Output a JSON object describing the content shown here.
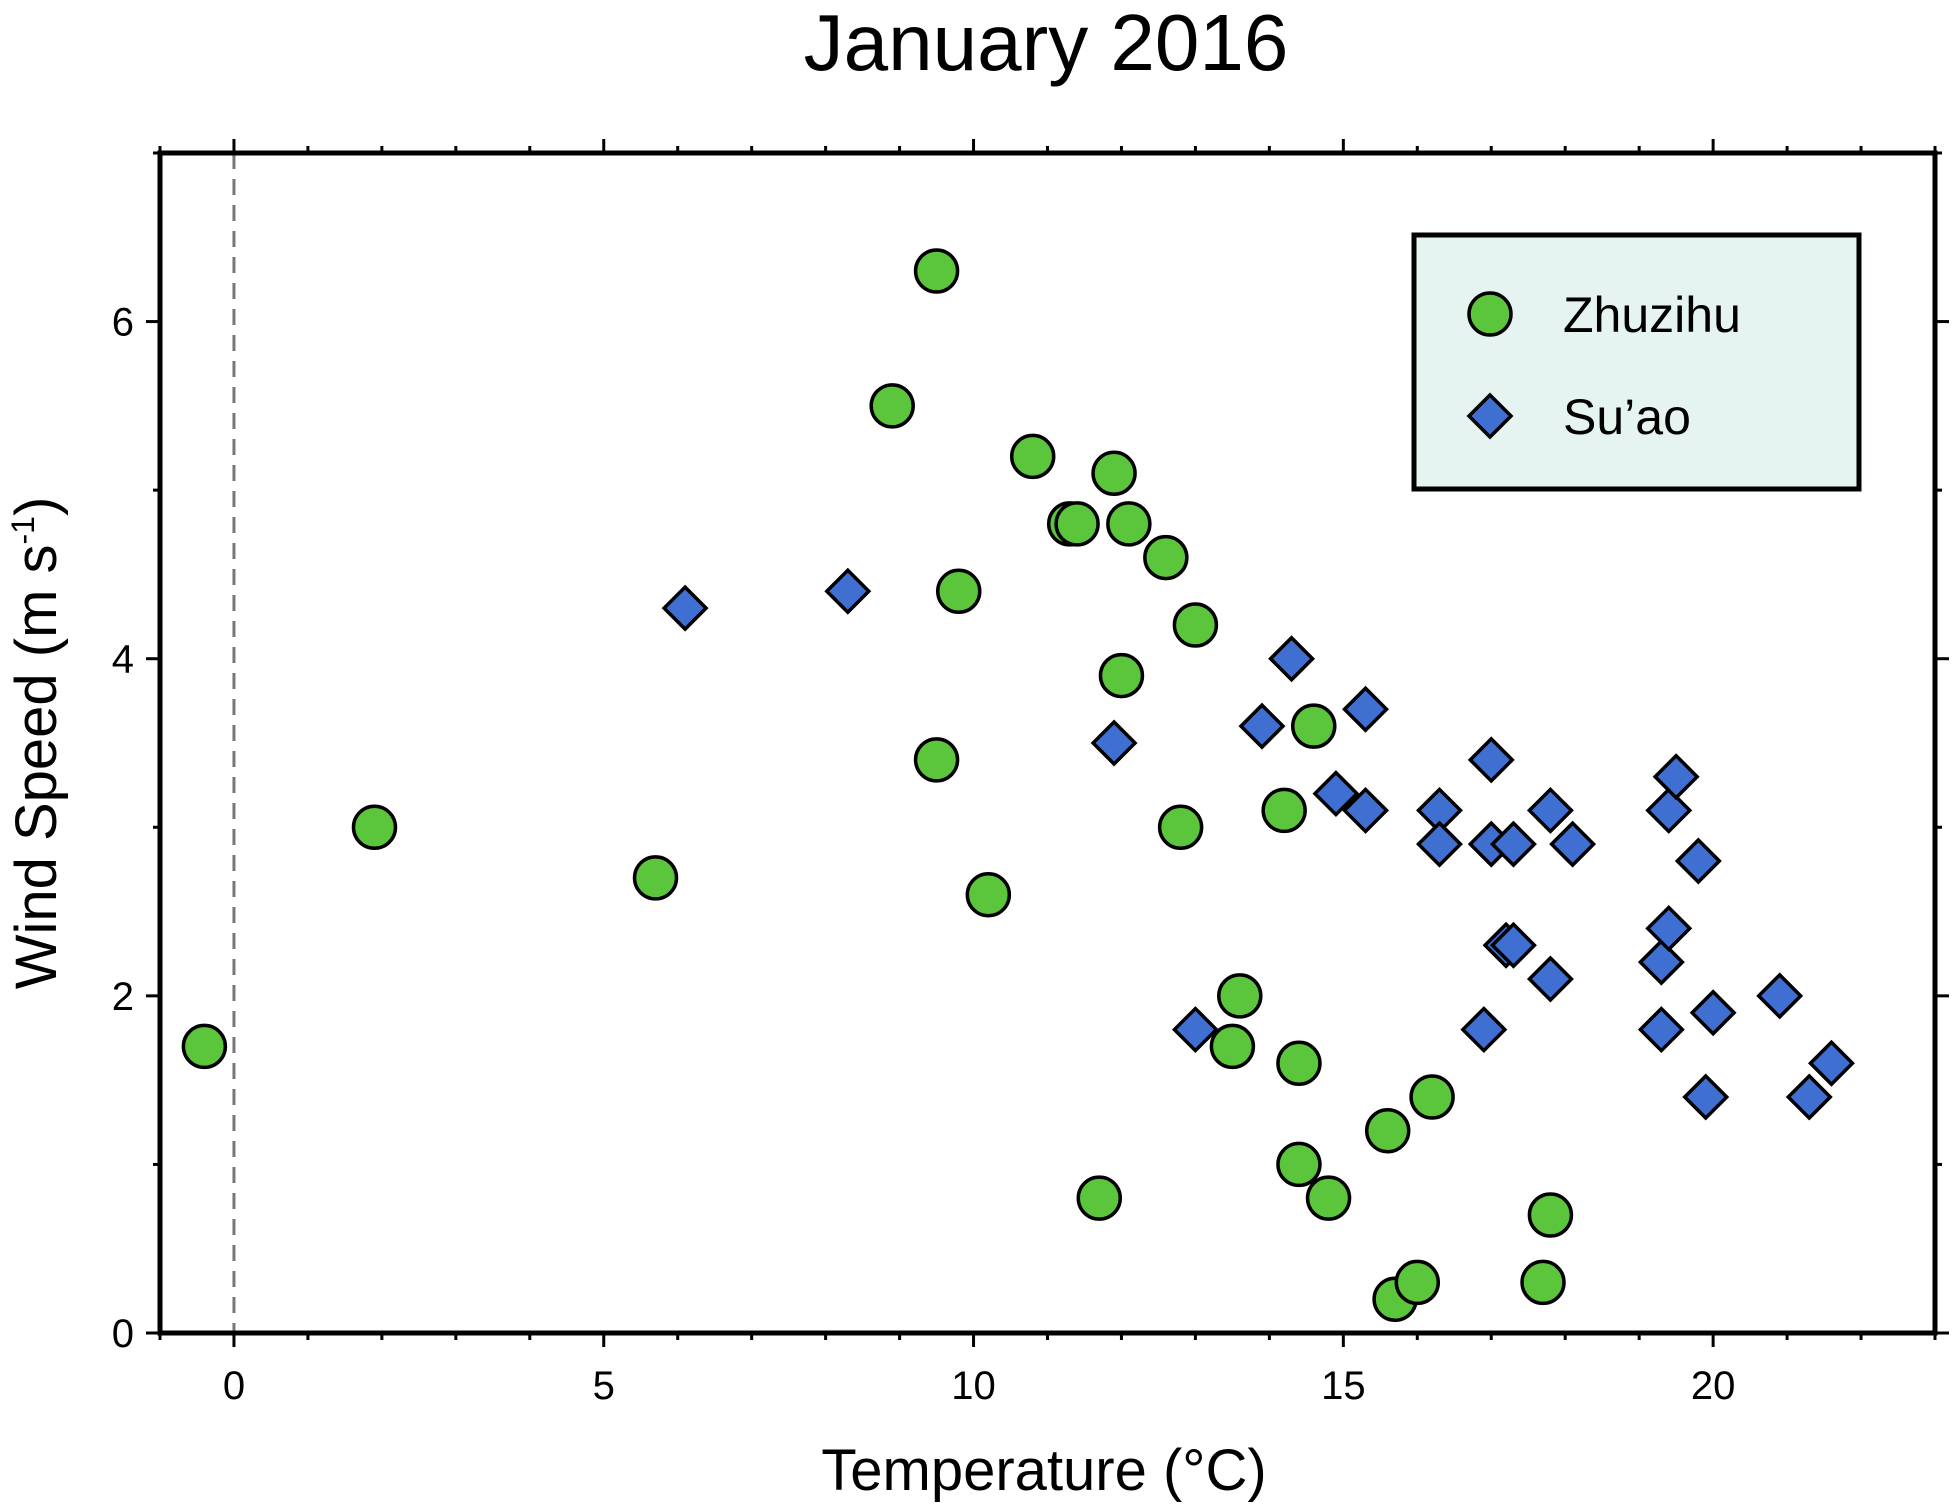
{
  "chart_data": {
    "type": "scatter",
    "title": "January 2016",
    "xlabel": "Temperature (°C)",
    "ylabel": {
      "main": "Wind Speed (m s",
      "sup": "-1",
      "end": ")"
    },
    "xlim": [
      -1,
      23
    ],
    "ylim": [
      0,
      7
    ],
    "xticks": [
      "0",
      "5",
      "10",
      "15",
      "20"
    ],
    "yticks": [
      "0",
      "2",
      "4",
      "6"
    ],
    "grid": false,
    "legend_position": "top-right",
    "reference_line": {
      "x": 0,
      "style": "dashed"
    },
    "series": [
      {
        "name": "Zhuzihu",
        "marker": "circle",
        "color": "#5bc53b",
        "points": [
          [
            -0.4,
            1.7
          ],
          [
            1.9,
            3.0
          ],
          [
            5.7,
            2.7
          ],
          [
            8.9,
            5.5
          ],
          [
            9.5,
            6.3
          ],
          [
            9.5,
            3.4
          ],
          [
            9.8,
            4.4
          ],
          [
            10.2,
            2.6
          ],
          [
            10.8,
            5.2
          ],
          [
            11.3,
            4.8
          ],
          [
            11.4,
            4.8
          ],
          [
            11.7,
            0.8
          ],
          [
            11.9,
            5.1
          ],
          [
            12.0,
            3.9
          ],
          [
            12.1,
            4.8
          ],
          [
            12.6,
            4.6
          ],
          [
            12.8,
            3.0
          ],
          [
            13.0,
            4.2
          ],
          [
            13.5,
            1.7
          ],
          [
            13.6,
            2.0
          ],
          [
            14.2,
            3.1
          ],
          [
            14.4,
            1.6
          ],
          [
            14.4,
            1.0
          ],
          [
            14.6,
            3.6
          ],
          [
            14.8,
            0.8
          ],
          [
            15.6,
            1.2
          ],
          [
            15.7,
            0.2
          ],
          [
            16.0,
            0.3
          ],
          [
            16.2,
            1.4
          ],
          [
            17.7,
            0.3
          ],
          [
            17.8,
            0.7
          ]
        ]
      },
      {
        "name": "Su’ao",
        "marker": "diamond",
        "color": "#3f6fd1",
        "points": [
          [
            6.1,
            4.3
          ],
          [
            8.3,
            4.4
          ],
          [
            11.9,
            3.5
          ],
          [
            13.0,
            1.8
          ],
          [
            13.9,
            3.6
          ],
          [
            14.3,
            4.0
          ],
          [
            14.9,
            3.2
          ],
          [
            15.3,
            3.7
          ],
          [
            15.3,
            3.1
          ],
          [
            16.3,
            3.1
          ],
          [
            16.3,
            2.9
          ],
          [
            16.9,
            1.8
          ],
          [
            17.0,
            3.4
          ],
          [
            17.0,
            2.9
          ],
          [
            17.2,
            2.3
          ],
          [
            17.3,
            2.9
          ],
          [
            17.3,
            2.3
          ],
          [
            17.8,
            3.1
          ],
          [
            17.8,
            2.1
          ],
          [
            18.1,
            2.9
          ],
          [
            19.3,
            2.2
          ],
          [
            19.3,
            1.8
          ],
          [
            19.4,
            3.1
          ],
          [
            19.4,
            2.4
          ],
          [
            19.5,
            3.3
          ],
          [
            19.8,
            2.8
          ],
          [
            19.9,
            1.4
          ],
          [
            20.0,
            1.9
          ],
          [
            20.9,
            2.0
          ],
          [
            21.3,
            1.4
          ],
          [
            21.6,
            1.6
          ]
        ]
      }
    ]
  }
}
